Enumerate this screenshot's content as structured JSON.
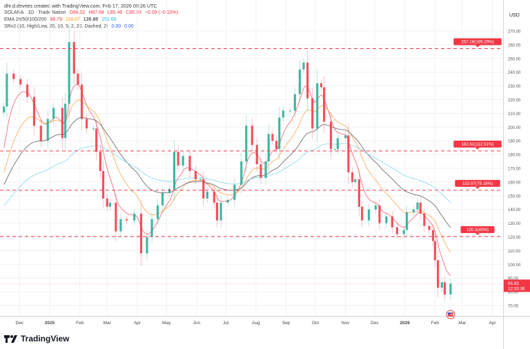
{
  "credit": "dhr.d.devries created with TradingView.com, Feb 17, 2026 09:26 UTC",
  "legend": {
    "symbol": "SOLANA · 1D · Trade Nation",
    "open": "O86.02",
    "high": "H87.68",
    "low": "L85.46",
    "close": "C85.93",
    "change": "−0.09 (−0.10%)",
    "ema_label": "EMA 20/50/100/200",
    "ema_values": [
      "98.79",
      "118.07",
      "136.88",
      "151.65"
    ],
    "srv2_label": "SRv2 (10, High/Low, 20, 10, 5, 2, 20, Dashed, 2)",
    "srv2_values": [
      "0.00",
      "0.00"
    ]
  },
  "footer": {
    "brand": "TradingView"
  },
  "colors": {
    "up": "#22ab94",
    "down": "#f23645",
    "ema20": "#f7525f",
    "ema50": "#ff9f43",
    "ema100": "#555555",
    "ema200": "#7dd3ea",
    "level": "#f23645"
  },
  "chart_data": {
    "type": "candlestick",
    "currency": "USD",
    "ylim": [
      65,
      275
    ],
    "yticks": [
      70,
      80,
      90,
      100,
      110,
      120,
      130,
      140,
      150,
      160,
      170,
      180,
      190,
      200,
      210,
      220,
      230,
      240,
      250,
      260,
      270
    ],
    "xticks": [
      {
        "label": "Dec",
        "date": "2024-12-01"
      },
      {
        "label": "2025",
        "date": "2025-01-01",
        "bold": true
      },
      {
        "label": "Feb",
        "date": "2025-02-01"
      },
      {
        "label": "Mar",
        "date": "2025-03-01"
      },
      {
        "label": "Apr",
        "date": "2025-04-01"
      },
      {
        "label": "May",
        "date": "2025-05-01"
      },
      {
        "label": "Jun",
        "date": "2025-06-01"
      },
      {
        "label": "Jul",
        "date": "2025-07-01"
      },
      {
        "label": "Aug",
        "date": "2025-08-01"
      },
      {
        "label": "Sep",
        "date": "2025-09-01"
      },
      {
        "label": "Oct",
        "date": "2025-10-01"
      },
      {
        "label": "Nov",
        "date": "2025-11-01"
      },
      {
        "label": "Dec",
        "date": "2025-12-01"
      },
      {
        "label": "2026",
        "date": "2026-01-01",
        "bold": true
      },
      {
        "label": "Feb",
        "date": "2026-02-01"
      },
      {
        "label": "Mar",
        "date": "2026-03-01"
      },
      {
        "label": "Apr",
        "date": "2026-04-01"
      }
    ],
    "closes": [
      [
        "2024-11-15",
        215
      ],
      [
        "2024-11-18",
        239
      ],
      [
        "2024-11-25",
        235
      ],
      [
        "2024-12-02",
        231
      ],
      [
        "2024-12-09",
        222
      ],
      [
        "2024-12-16",
        201
      ],
      [
        "2024-12-23",
        190
      ],
      [
        "2024-12-30",
        206
      ],
      [
        "2025-01-05",
        214
      ],
      [
        "2025-01-14",
        192
      ],
      [
        "2025-01-17",
        217
      ],
      [
        "2025-01-21",
        262
      ],
      [
        "2025-01-26",
        239
      ],
      [
        "2025-01-30",
        231
      ],
      [
        "2025-02-03",
        206
      ],
      [
        "2025-02-08",
        199
      ],
      [
        "2025-02-15",
        199
      ],
      [
        "2025-02-18",
        182
      ],
      [
        "2025-02-22",
        168
      ],
      [
        "2025-02-25",
        148
      ],
      [
        "2025-03-01",
        142
      ],
      [
        "2025-03-04",
        145
      ],
      [
        "2025-03-10",
        124
      ],
      [
        "2025-03-15",
        133
      ],
      [
        "2025-03-21",
        132
      ],
      [
        "2025-03-29",
        137
      ],
      [
        "2025-04-05",
        108
      ],
      [
        "2025-04-11",
        120
      ],
      [
        "2025-04-16",
        133
      ],
      [
        "2025-04-22",
        143
      ],
      [
        "2025-04-27",
        152
      ],
      [
        "2025-05-04",
        155
      ],
      [
        "2025-05-09",
        182
      ],
      [
        "2025-05-13",
        172
      ],
      [
        "2025-05-18",
        179
      ],
      [
        "2025-05-25",
        168
      ],
      [
        "2025-05-31",
        162
      ],
      [
        "2025-06-05",
        162
      ],
      [
        "2025-06-08",
        148
      ],
      [
        "2025-06-12",
        153
      ],
      [
        "2025-06-19",
        145
      ],
      [
        "2025-06-22",
        132
      ],
      [
        "2025-06-26",
        145
      ],
      [
        "2025-07-03",
        147
      ],
      [
        "2025-07-10",
        158
      ],
      [
        "2025-07-17",
        175
      ],
      [
        "2025-07-22",
        201
      ],
      [
        "2025-07-28",
        187
      ],
      [
        "2025-08-02",
        173
      ],
      [
        "2025-08-06",
        163
      ],
      [
        "2025-08-11",
        175
      ],
      [
        "2025-08-14",
        195
      ],
      [
        "2025-08-18",
        190
      ],
      [
        "2025-08-22",
        184
      ],
      [
        "2025-08-25",
        207
      ],
      [
        "2025-08-29",
        212
      ],
      [
        "2025-09-05",
        212
      ],
      [
        "2025-09-10",
        224
      ],
      [
        "2025-09-15",
        242
      ],
      [
        "2025-09-19",
        247
      ],
      [
        "2025-09-23",
        221
      ],
      [
        "2025-09-28",
        199
      ],
      [
        "2025-10-03",
        232
      ],
      [
        "2025-10-07",
        229
      ],
      [
        "2025-10-10",
        204
      ],
      [
        "2025-10-17",
        184
      ],
      [
        "2025-10-21",
        184
      ],
      [
        "2025-10-24",
        192
      ],
      [
        "2025-11-01",
        194
      ],
      [
        "2025-11-04",
        167
      ],
      [
        "2025-11-08",
        160
      ],
      [
        "2025-11-11",
        162
      ],
      [
        "2025-11-15",
        142
      ],
      [
        "2025-11-18",
        132
      ],
      [
        "2025-11-25",
        140
      ],
      [
        "2025-12-02",
        143
      ],
      [
        "2025-12-06",
        130
      ],
      [
        "2025-12-13",
        135
      ],
      [
        "2025-12-19",
        127
      ],
      [
        "2025-12-24",
        122
      ],
      [
        "2025-12-31",
        125
      ],
      [
        "2026-01-03",
        138
      ],
      [
        "2026-01-10",
        140
      ],
      [
        "2026-01-14",
        145
      ],
      [
        "2026-01-17",
        137
      ],
      [
        "2026-01-21",
        128
      ],
      [
        "2026-01-26",
        125
      ],
      [
        "2026-01-30",
        117
      ],
      [
        "2026-02-01",
        103
      ],
      [
        "2026-02-04",
        83
      ],
      [
        "2026-02-08",
        87
      ],
      [
        "2026-02-11",
        78
      ],
      [
        "2026-02-17",
        85.93
      ]
    ],
    "last_price": {
      "value": 85.93,
      "label": "85.93",
      "countdown": "12:33:36"
    },
    "levels": [
      {
        "price": 257.18,
        "label": "257.18(199.29%)"
      },
      {
        "price": 182.61,
        "label": "182.61(112.51%)"
      },
      {
        "price": 153.97,
        "label": "153.97(79.18%)"
      },
      {
        "price": 120.3,
        "label": "120.3(40%)"
      }
    ],
    "series": [
      {
        "name": "EMA 20",
        "last": 98.79
      },
      {
        "name": "EMA 50",
        "last": 118.07
      },
      {
        "name": "EMA 100",
        "last": 136.88
      },
      {
        "name": "EMA 200",
        "last": 151.65
      }
    ]
  }
}
